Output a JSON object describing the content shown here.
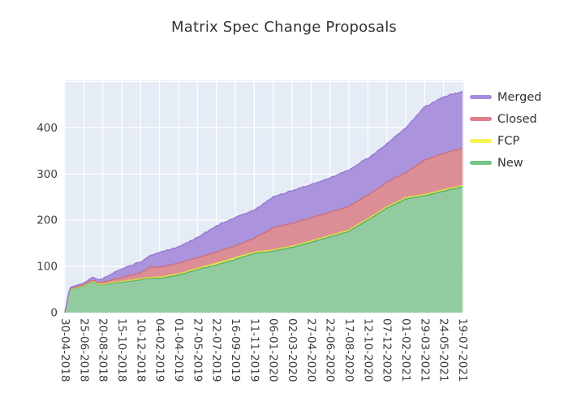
{
  "title": "Matrix Spec Change Proposals",
  "chart_data": {
    "type": "area",
    "stacked": true,
    "title": "Matrix Spec Change Proposals",
    "xlabel": "",
    "ylabel": "",
    "ylim": [
      0,
      502
    ],
    "yticks": [
      0,
      100,
      200,
      300,
      400
    ],
    "grid": true,
    "plot_bg": "#e5ecf6",
    "grid_color": "#ffffff",
    "tick_color": "#3d3d3d",
    "legend_position": "right-top",
    "tick_labels": [
      "30-04-2018",
      "25-06-2018",
      "20-08-2018",
      "15-10-2018",
      "10-12-2018",
      "04-02-2019",
      "01-04-2019",
      "27-05-2019",
      "22-07-2019",
      "16-09-2019",
      "11-11-2019",
      "06-01-2020",
      "02-03-2020",
      "27-04-2020",
      "22-06-2020",
      "17-08-2020",
      "12-10-2020",
      "07-12-2020",
      "01-02-2021",
      "29-03-2021",
      "24-05-2021",
      "19-07-2021"
    ],
    "x": [
      0,
      0.25,
      1,
      1.45,
      1.8,
      2,
      3,
      4,
      4.5,
      5,
      6,
      7,
      8,
      9,
      10,
      11,
      12,
      13,
      14,
      15,
      16,
      17,
      18,
      19,
      20,
      21
    ],
    "series": [
      {
        "name": "New",
        "fill": "#93cba0",
        "line": "#53b06c",
        "values": [
          0,
          50,
          57,
          68,
          60,
          61,
          66,
          71,
          74,
          74,
          81,
          93,
          103,
          115,
          128,
          133,
          141,
          152,
          164,
          176,
          200,
          226,
          246,
          253,
          263,
          272
        ]
      },
      {
        "name": "FCP",
        "fill": "#f6f468",
        "line": "#e0d944",
        "values": [
          0,
          1,
          1,
          1,
          1,
          1,
          2,
          2,
          2,
          3,
          3,
          3,
          4,
          4,
          3,
          3,
          3,
          3,
          3,
          3,
          3,
          3,
          3,
          3,
          3,
          3
        ]
      },
      {
        "name": "Closed",
        "fill": "#dc8e97",
        "line": "#cb6f7d",
        "values": [
          0,
          1,
          2,
          2,
          3,
          4,
          8,
          13,
          23,
          21,
          23,
          23,
          24,
          25,
          30,
          48,
          49,
          50,
          50,
          51,
          51,
          53,
          54,
          74,
          79,
          80
        ]
      },
      {
        "name": "Merged",
        "fill": "#ab93dd",
        "line": "#9879d2",
        "values": [
          0,
          2,
          4,
          6,
          6,
          8,
          19,
          24,
          24,
          32,
          35,
          44,
          56,
          62,
          61,
          66,
          71,
          72,
          74,
          79,
          80,
          83,
          97,
          115,
          122,
          123
        ]
      }
    ],
    "legend": [
      {
        "label": "Merged",
        "color": "#a58add"
      },
      {
        "label": "Closed",
        "color": "#df7f89"
      },
      {
        "label": "FCP",
        "color": "#f7f356"
      },
      {
        "label": "New",
        "color": "#72c487"
      }
    ]
  }
}
